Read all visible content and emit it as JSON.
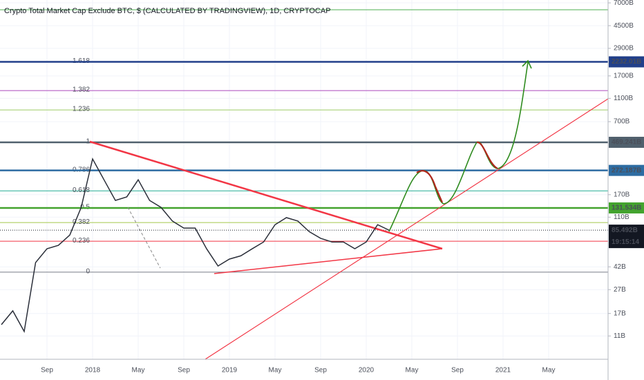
{
  "chart_data": {
    "type": "line",
    "title": "Crypto Total Market Cap Exclude BTC, $ (CALCULATED BY TRADINGVIEW), 1D, CRYPTOCAP",
    "log_scale": true,
    "grid": true,
    "color": "#2a2e39",
    "categories": [
      null,
      null,
      null,
      null,
      "Sep",
      null,
      null,
      null,
      "2018",
      null,
      null,
      null,
      "May",
      null,
      null,
      null,
      "Sep",
      null,
      null,
      null,
      "2019",
      null,
      null,
      null,
      "May",
      null,
      null,
      null,
      "Sep",
      null,
      null,
      null,
      "2020",
      null,
      null,
      null,
      "May",
      null,
      null,
      null,
      "Sep",
      null,
      null,
      null,
      "2021",
      null,
      null,
      null,
      "May",
      null,
      null,
      null,
      null,
      null
    ],
    "values": [
      13.7,
      17.9,
      12,
      45.6,
      59.6,
      63.7,
      77.8,
      133,
      340,
      227,
      152,
      163,
      227,
      152,
      133,
      102,
      89,
      89,
      59.6,
      42.7,
      48.8,
      52,
      59.6,
      68,
      95,
      109,
      102,
      83,
      73,
      68,
      68,
      59.6,
      68,
      95,
      85.492,
      null,
      null,
      null,
      null,
      null,
      null,
      null,
      null,
      null,
      null,
      null,
      null,
      null,
      null,
      null,
      null,
      null,
      null,
      null
    ],
    "ylim": [
      7,
      7400
    ],
    "yticks": [
      {
        "value": 7000,
        "label": "7000B"
      },
      {
        "value": 4500,
        "label": "4500B"
      },
      {
        "value": 2900,
        "label": "2900B"
      },
      {
        "value": 1700,
        "label": "1700B"
      },
      {
        "value": 1100,
        "label": "1100B"
      },
      {
        "value": 700,
        "label": "700B"
      },
      {
        "value": 170,
        "label": "170B"
      },
      {
        "value": 110,
        "label": "110B"
      },
      {
        "value": 42,
        "label": "42B"
      },
      {
        "value": 27,
        "label": "27B"
      },
      {
        "value": 17,
        "label": "17B"
      },
      {
        "value": 11,
        "label": "11B"
      }
    ],
    "fib_levels": [
      {
        "label": "0",
        "value": 37.9,
        "color": "#787b86"
      },
      {
        "label": "0.236",
        "value": 69,
        "color": "#f23645"
      },
      {
        "label": "0.382",
        "value": 99,
        "color": "#a5c84a"
      },
      {
        "label": "0.5",
        "value": 131.534,
        "color": "#4caf50"
      },
      {
        "label": "0.618",
        "value": 183,
        "color": "#22ab94"
      },
      {
        "label": "0.786",
        "value": 272.187,
        "color": "#64b5f6"
      },
      {
        "label": "1",
        "value": 469.241,
        "color": "#787b86"
      },
      {
        "label": "1.236",
        "value": 879,
        "color": "#9ccc65"
      },
      {
        "label": "1.382",
        "value": 1279,
        "color": "#ab47bc"
      },
      {
        "label": "1.618",
        "value": 2232.01,
        "color": "#2962ff"
      },
      {
        "value": 6124,
        "color": "#4caf50"
      }
    ],
    "price_lines": [
      {
        "value": 2232.01,
        "label": "2232.01B",
        "color": "#213f8a"
      },
      {
        "value": 469.241,
        "label": "469.241B",
        "color": "#50606d"
      },
      {
        "value": 272.187,
        "label": "272.187B",
        "color": "#2d6ca2"
      },
      {
        "value": 131.534,
        "label": "131.534B",
        "color": "#43a32e"
      }
    ],
    "last_price": {
      "value": 85.492,
      "label": "85.492B",
      "countdown": "19:15:14",
      "color": "#131722"
    }
  }
}
